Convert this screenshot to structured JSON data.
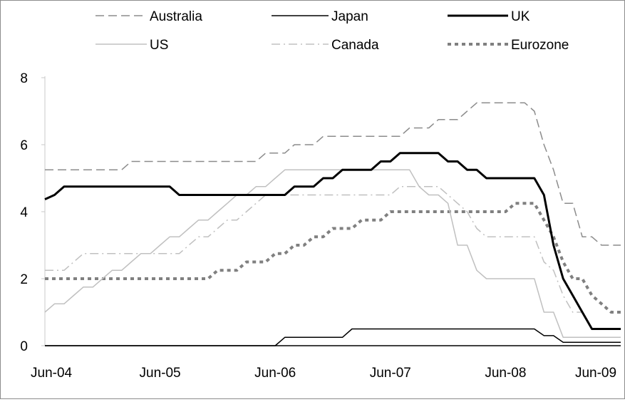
{
  "chart_data": {
    "type": "line",
    "title": "",
    "xlabel": "",
    "ylabel": "",
    "x_range": [
      "2004-06",
      "2009-06"
    ],
    "ylim": [
      0,
      8
    ],
    "y_ticks": [
      0,
      2,
      4,
      6,
      8
    ],
    "y_tick_labels": [
      "0",
      "2",
      "4",
      "6",
      "8"
    ],
    "x_tick_labels": [
      "Jun-04",
      "Jun-05",
      "Jun-06",
      "Jun-07",
      "Jun-08",
      "Jun-09"
    ],
    "grid": false,
    "legend_position": "top",
    "series": [
      {
        "name": "Australia",
        "color": "#8c8c8c",
        "dash": "dashed",
        "weight": "normal",
        "points": [
          [
            "2004-06",
            5.25
          ],
          [
            "2005-02",
            5.25
          ],
          [
            "2005-03",
            5.5
          ],
          [
            "2006-04",
            5.5
          ],
          [
            "2006-05",
            5.75
          ],
          [
            "2006-07",
            5.75
          ],
          [
            "2006-08",
            6.0
          ],
          [
            "2006-10",
            6.0
          ],
          [
            "2006-11",
            6.25
          ],
          [
            "2007-07",
            6.25
          ],
          [
            "2007-08",
            6.5
          ],
          [
            "2007-10",
            6.5
          ],
          [
            "2007-11",
            6.75
          ],
          [
            "2008-01",
            6.75
          ],
          [
            "2008-02",
            7.0
          ],
          [
            "2008-03",
            7.25
          ],
          [
            "2008-08",
            7.25
          ],
          [
            "2008-09",
            7.0
          ],
          [
            "2008-10",
            6.0
          ],
          [
            "2008-11",
            5.25
          ],
          [
            "2008-12",
            4.25
          ],
          [
            "2009-01",
            4.25
          ],
          [
            "2009-02",
            3.25
          ],
          [
            "2009-03",
            3.25
          ],
          [
            "2009-04",
            3.0
          ],
          [
            "2009-06",
            3.0
          ]
        ]
      },
      {
        "name": "Japan",
        "color": "#000000",
        "dash": "solid",
        "weight": "normal",
        "points": [
          [
            "2004-06",
            0.0
          ],
          [
            "2006-06",
            0.0
          ],
          [
            "2006-07",
            0.25
          ],
          [
            "2007-01",
            0.25
          ],
          [
            "2007-02",
            0.5
          ],
          [
            "2008-09",
            0.5
          ],
          [
            "2008-10",
            0.3
          ],
          [
            "2008-11",
            0.3
          ],
          [
            "2008-12",
            0.1
          ],
          [
            "2009-06",
            0.1
          ]
        ]
      },
      {
        "name": "UK",
        "color": "#000000",
        "dash": "solid",
        "weight": "bold",
        "points": [
          [
            "2004-06",
            4.37
          ],
          [
            "2004-07",
            4.5
          ],
          [
            "2004-08",
            4.75
          ],
          [
            "2005-07",
            4.75
          ],
          [
            "2005-08",
            4.5
          ],
          [
            "2006-07",
            4.5
          ],
          [
            "2006-08",
            4.75
          ],
          [
            "2006-10",
            4.75
          ],
          [
            "2006-11",
            5.0
          ],
          [
            "2006-12",
            5.0
          ],
          [
            "2007-01",
            5.25
          ],
          [
            "2007-04",
            5.25
          ],
          [
            "2007-05",
            5.5
          ],
          [
            "2007-06",
            5.5
          ],
          [
            "2007-07",
            5.75
          ],
          [
            "2007-11",
            5.75
          ],
          [
            "2007-12",
            5.5
          ],
          [
            "2008-01",
            5.5
          ],
          [
            "2008-02",
            5.25
          ],
          [
            "2008-03",
            5.25
          ],
          [
            "2008-04",
            5.0
          ],
          [
            "2008-09",
            5.0
          ],
          [
            "2008-10",
            4.5
          ],
          [
            "2008-11",
            3.0
          ],
          [
            "2008-12",
            2.0
          ],
          [
            "2009-01",
            1.5
          ],
          [
            "2009-02",
            1.0
          ],
          [
            "2009-03",
            0.5
          ],
          [
            "2009-06",
            0.5
          ]
        ]
      },
      {
        "name": "US",
        "color": "#c0c0c0",
        "dash": "solid",
        "weight": "normal",
        "points": [
          [
            "2004-06",
            1.0
          ],
          [
            "2004-07",
            1.25
          ],
          [
            "2004-08",
            1.25
          ],
          [
            "2004-09",
            1.5
          ],
          [
            "2004-10",
            1.75
          ],
          [
            "2004-11",
            1.75
          ],
          [
            "2004-12",
            2.0
          ],
          [
            "2005-01",
            2.25
          ],
          [
            "2005-02",
            2.25
          ],
          [
            "2005-03",
            2.5
          ],
          [
            "2005-04",
            2.75
          ],
          [
            "2005-05",
            2.75
          ],
          [
            "2005-06",
            3.0
          ],
          [
            "2005-07",
            3.25
          ],
          [
            "2005-08",
            3.25
          ],
          [
            "2005-09",
            3.5
          ],
          [
            "2005-10",
            3.75
          ],
          [
            "2005-11",
            3.75
          ],
          [
            "2005-12",
            4.0
          ],
          [
            "2006-01",
            4.25
          ],
          [
            "2006-02",
            4.5
          ],
          [
            "2006-03",
            4.5
          ],
          [
            "2006-04",
            4.75
          ],
          [
            "2006-05",
            4.75
          ],
          [
            "2006-06",
            5.0
          ],
          [
            "2006-07",
            5.25
          ],
          [
            "2007-08",
            5.25
          ],
          [
            "2007-09",
            4.75
          ],
          [
            "2007-10",
            4.5
          ],
          [
            "2007-11",
            4.5
          ],
          [
            "2007-12",
            4.25
          ],
          [
            "2008-01",
            3.0
          ],
          [
            "2008-02",
            3.0
          ],
          [
            "2008-03",
            2.25
          ],
          [
            "2008-04",
            2.0
          ],
          [
            "2008-09",
            2.0
          ],
          [
            "2008-10",
            1.0
          ],
          [
            "2008-11",
            1.0
          ],
          [
            "2008-12",
            0.25
          ],
          [
            "2009-06",
            0.25
          ]
        ]
      },
      {
        "name": "Canada",
        "color": "#c0c0c0",
        "dash": "dashdot",
        "weight": "normal",
        "points": [
          [
            "2004-06",
            2.25
          ],
          [
            "2004-08",
            2.25
          ],
          [
            "2004-09",
            2.5
          ],
          [
            "2004-10",
            2.75
          ],
          [
            "2005-08",
            2.75
          ],
          [
            "2005-09",
            3.0
          ],
          [
            "2005-10",
            3.25
          ],
          [
            "2005-11",
            3.25
          ],
          [
            "2005-12",
            3.5
          ],
          [
            "2006-01",
            3.75
          ],
          [
            "2006-02",
            3.75
          ],
          [
            "2006-03",
            4.0
          ],
          [
            "2006-04",
            4.25
          ],
          [
            "2006-05",
            4.5
          ],
          [
            "2007-06",
            4.5
          ],
          [
            "2007-07",
            4.75
          ],
          [
            "2007-11",
            4.75
          ],
          [
            "2007-12",
            4.5
          ],
          [
            "2008-01",
            4.25
          ],
          [
            "2008-02",
            4.0
          ],
          [
            "2008-03",
            3.5
          ],
          [
            "2008-04",
            3.25
          ],
          [
            "2008-09",
            3.25
          ],
          [
            "2008-10",
            2.5
          ],
          [
            "2008-11",
            2.25
          ],
          [
            "2008-12",
            1.5
          ],
          [
            "2009-01",
            1.0
          ],
          [
            "2009-02",
            1.0
          ],
          [
            "2009-03",
            0.5
          ],
          [
            "2009-06",
            0.5
          ]
        ]
      },
      {
        "name": "Eurozone",
        "color": "#808080",
        "dash": "dotted",
        "weight": "bold",
        "points": [
          [
            "2004-06",
            2.0
          ],
          [
            "2005-11",
            2.0
          ],
          [
            "2005-12",
            2.25
          ],
          [
            "2006-02",
            2.25
          ],
          [
            "2006-03",
            2.5
          ],
          [
            "2006-05",
            2.5
          ],
          [
            "2006-06",
            2.75
          ],
          [
            "2006-07",
            2.75
          ],
          [
            "2006-08",
            3.0
          ],
          [
            "2006-09",
            3.0
          ],
          [
            "2006-10",
            3.25
          ],
          [
            "2006-11",
            3.25
          ],
          [
            "2006-12",
            3.5
          ],
          [
            "2007-02",
            3.5
          ],
          [
            "2007-03",
            3.75
          ],
          [
            "2007-05",
            3.75
          ],
          [
            "2007-06",
            4.0
          ],
          [
            "2008-06",
            4.0
          ],
          [
            "2008-07",
            4.25
          ],
          [
            "2008-09",
            4.25
          ],
          [
            "2008-10",
            3.75
          ],
          [
            "2008-11",
            3.25
          ],
          [
            "2008-12",
            2.5
          ],
          [
            "2009-01",
            2.0
          ],
          [
            "2009-02",
            2.0
          ],
          [
            "2009-03",
            1.5
          ],
          [
            "2009-04",
            1.25
          ],
          [
            "2009-05",
            1.0
          ],
          [
            "2009-06",
            1.0
          ]
        ]
      }
    ]
  }
}
